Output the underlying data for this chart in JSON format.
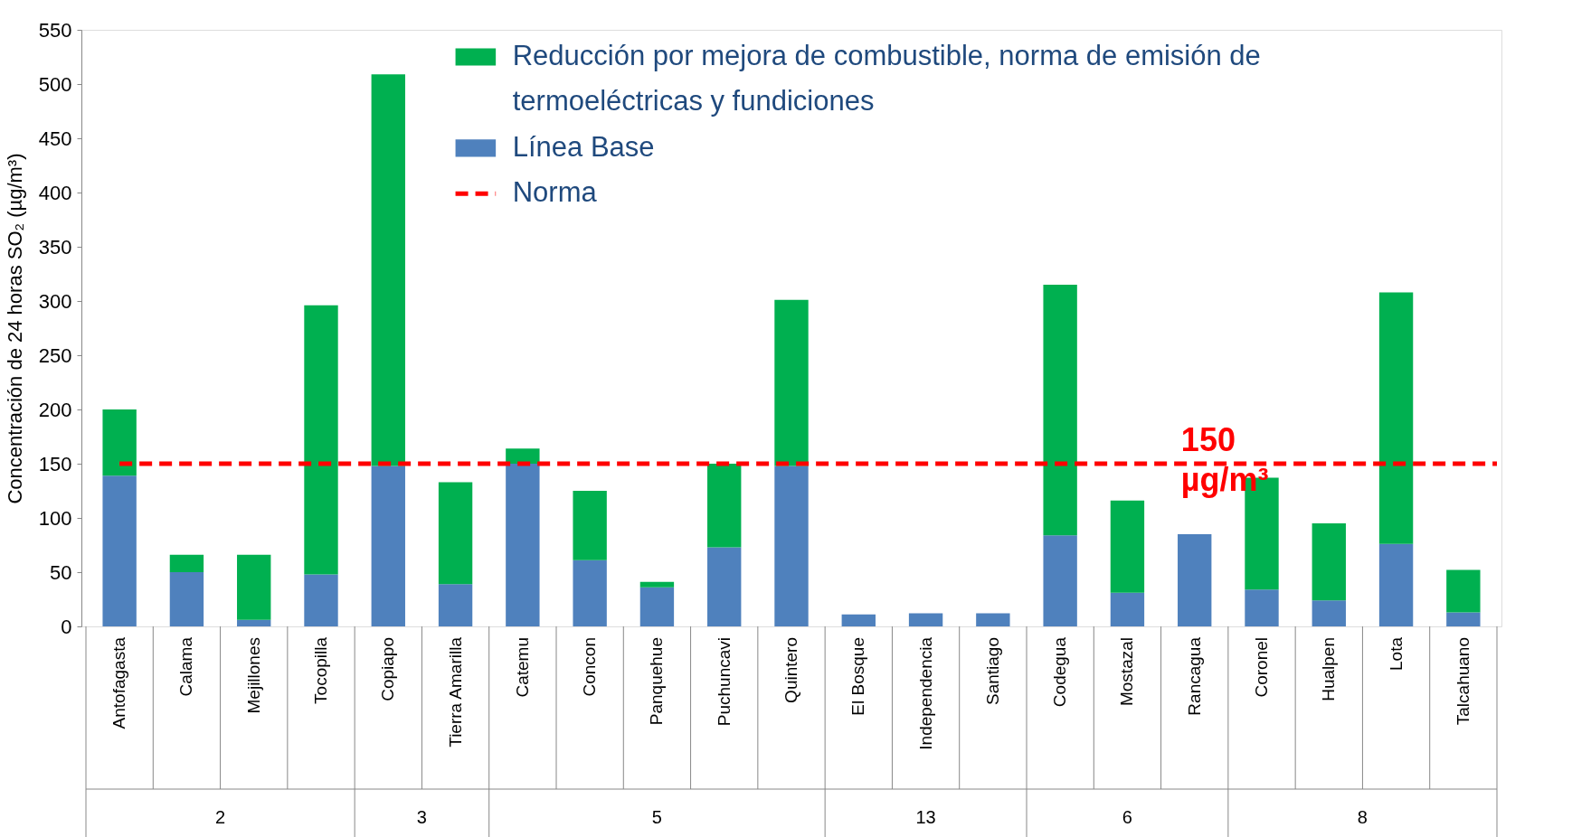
{
  "chart_data": {
    "type": "bar",
    "stacked": true,
    "ylabel": "Concentración de 24 horas SO₂ (µg/m³)",
    "categories": [
      "Antofagasta",
      "Calama",
      "Mejillones",
      "Tocopilla",
      "Copiapo",
      "Tierra Amarilla",
      "Catemu",
      "Concon",
      "Panquehue",
      "Puchuncavi",
      "Quintero",
      "El Bosque",
      "Independencia",
      "Santiago",
      "Codegua",
      "Mostazal",
      "Rancagua",
      "Coronel",
      "Hualpen",
      "Lota",
      "Talcahuano"
    ],
    "series": [
      {
        "name": "Línea Base",
        "color": "#4f81bd",
        "values": [
          139,
          50,
          6,
          48,
          148,
          39,
          150,
          61,
          36,
          73,
          148,
          11,
          12,
          12,
          84,
          31,
          85,
          34,
          24,
          76,
          13
        ]
      },
      {
        "name": "Reducción por mejora de combustible, norma de emisión de termoeléctricas y fundiciones",
        "color": "#00b050",
        "values": [
          61,
          16,
          60,
          248,
          361,
          94,
          14,
          64,
          5,
          77,
          153,
          0,
          0,
          0,
          231,
          85,
          0,
          103,
          71,
          232,
          39
        ]
      }
    ],
    "ylim": [
      0,
      550
    ],
    "yticks": [
      0,
      50,
      100,
      150,
      200,
      250,
      300,
      350,
      400,
      450,
      500,
      550
    ],
    "grid": false,
    "legend": "top right",
    "ref_lines": [
      {
        "axis": "y",
        "value": 150,
        "label": "Norma",
        "color": "#ff0000",
        "line_style": "dashed"
      }
    ],
    "annotations": [
      {
        "text": "150 µg/m³",
        "x": "Coronel",
        "y": 150
      },
      "2",
      "3",
      "5",
      "13",
      "6",
      "8"
    ]
  }
}
